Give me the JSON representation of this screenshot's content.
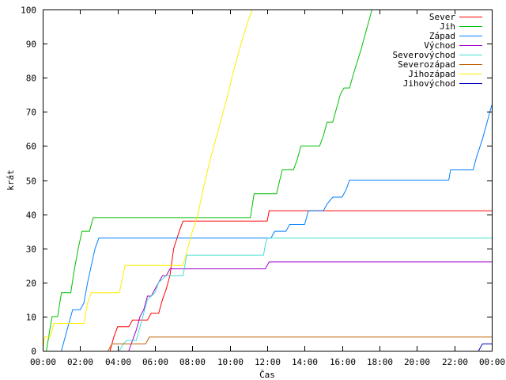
{
  "chart_data": {
    "type": "line",
    "title": "",
    "xlabel": "Čas",
    "ylabel": "krát",
    "xlim": [
      0,
      24
    ],
    "ylim": [
      0,
      100
    ],
    "grid": false,
    "legend_position": "top-right",
    "x_ticks": [
      {
        "v": 0,
        "label": "00:00"
      },
      {
        "v": 2,
        "label": "02:00"
      },
      {
        "v": 4,
        "label": "04:00"
      },
      {
        "v": 6,
        "label": "06:00"
      },
      {
        "v": 8,
        "label": "08:00"
      },
      {
        "v": 10,
        "label": "10:00"
      },
      {
        "v": 12,
        "label": "12:00"
      },
      {
        "v": 14,
        "label": "14:00"
      },
      {
        "v": 16,
        "label": "16:00"
      },
      {
        "v": 18,
        "label": "18:00"
      },
      {
        "v": 20,
        "label": "20:00"
      },
      {
        "v": 22,
        "label": "22:00"
      },
      {
        "v": 24,
        "label": "00:00"
      }
    ],
    "y_ticks": [
      {
        "v": 0,
        "label": "0"
      },
      {
        "v": 10,
        "label": "10"
      },
      {
        "v": 20,
        "label": "20"
      },
      {
        "v": 30,
        "label": "30"
      },
      {
        "v": 40,
        "label": "40"
      },
      {
        "v": 50,
        "label": "50"
      },
      {
        "v": 60,
        "label": "60"
      },
      {
        "v": 70,
        "label": "70"
      },
      {
        "v": 80,
        "label": "80"
      },
      {
        "v": 90,
        "label": "90"
      },
      {
        "v": 100,
        "label": "100"
      }
    ],
    "series": [
      {
        "name": "Sever",
        "color": "#ff0000",
        "points": [
          [
            3.6,
            0
          ],
          [
            3.8,
            4
          ],
          [
            4.0,
            7
          ],
          [
            4.6,
            7
          ],
          [
            4.8,
            9
          ],
          [
            5.6,
            9
          ],
          [
            5.8,
            11
          ],
          [
            6.2,
            11
          ],
          [
            6.4,
            15
          ],
          [
            6.6,
            18
          ],
          [
            6.8,
            22
          ],
          [
            7.0,
            30
          ],
          [
            7.3,
            35
          ],
          [
            7.5,
            38
          ],
          [
            12.0,
            38
          ],
          [
            12.1,
            41
          ],
          [
            24.0,
            41
          ]
        ]
      },
      {
        "name": "Jih",
        "color": "#00c000",
        "points": [
          [
            0.2,
            0
          ],
          [
            0.5,
            10
          ],
          [
            0.8,
            10
          ],
          [
            1.0,
            17
          ],
          [
            1.5,
            17
          ],
          [
            1.7,
            24
          ],
          [
            1.9,
            30
          ],
          [
            2.1,
            35
          ],
          [
            2.5,
            35
          ],
          [
            2.7,
            39
          ],
          [
            11.1,
            39
          ],
          [
            11.3,
            46
          ],
          [
            12.5,
            46
          ],
          [
            12.8,
            53
          ],
          [
            13.4,
            53
          ],
          [
            13.6,
            56
          ],
          [
            13.8,
            60
          ],
          [
            14.8,
            60
          ],
          [
            15.0,
            63
          ],
          [
            15.2,
            67
          ],
          [
            15.5,
            67
          ],
          [
            15.7,
            71
          ],
          [
            15.9,
            75
          ],
          [
            16.1,
            77
          ],
          [
            16.4,
            77
          ],
          [
            16.6,
            81
          ],
          [
            17.0,
            88
          ],
          [
            17.4,
            96
          ],
          [
            17.6,
            100
          ]
        ]
      },
      {
        "name": "Západ",
        "color": "#0080ff",
        "points": [
          [
            1.0,
            0
          ],
          [
            1.2,
            4
          ],
          [
            1.4,
            8
          ],
          [
            1.6,
            12
          ],
          [
            2.0,
            12
          ],
          [
            2.2,
            14
          ],
          [
            2.4,
            20
          ],
          [
            2.6,
            25
          ],
          [
            2.8,
            30
          ],
          [
            3.0,
            33
          ],
          [
            12.2,
            33
          ],
          [
            12.4,
            35
          ],
          [
            13.0,
            35
          ],
          [
            13.2,
            37
          ],
          [
            14.0,
            37
          ],
          [
            14.2,
            41
          ],
          [
            14.5,
            41
          ],
          [
            15.0,
            41
          ],
          [
            15.2,
            43
          ],
          [
            15.5,
            45
          ],
          [
            16.0,
            45
          ],
          [
            16.2,
            47
          ],
          [
            16.4,
            50
          ],
          [
            21.7,
            50
          ],
          [
            21.8,
            53
          ],
          [
            23.0,
            53
          ],
          [
            23.2,
            57
          ],
          [
            23.5,
            62
          ],
          [
            23.8,
            68
          ],
          [
            24.0,
            72
          ]
        ]
      },
      {
        "name": "Východ",
        "color": "#a000d0",
        "points": [
          [
            4.6,
            0
          ],
          [
            4.8,
            3
          ],
          [
            5.0,
            6
          ],
          [
            5.2,
            10
          ],
          [
            5.4,
            12
          ],
          [
            5.6,
            16
          ],
          [
            5.8,
            16
          ],
          [
            6.0,
            18
          ],
          [
            6.2,
            20
          ],
          [
            6.4,
            22
          ],
          [
            6.6,
            22
          ],
          [
            6.8,
            24
          ],
          [
            11.9,
            24
          ],
          [
            12.1,
            26
          ],
          [
            24.0,
            26
          ]
        ]
      },
      {
        "name": "Severovýchod",
        "color": "#40e0d0",
        "points": [
          [
            4.1,
            0
          ],
          [
            4.3,
            2
          ],
          [
            4.5,
            3
          ],
          [
            5.0,
            3
          ],
          [
            5.2,
            7
          ],
          [
            5.4,
            11
          ],
          [
            5.6,
            15
          ],
          [
            6.0,
            17
          ],
          [
            6.2,
            20
          ],
          [
            6.6,
            22
          ],
          [
            7.5,
            22
          ],
          [
            7.7,
            28
          ],
          [
            11.8,
            28
          ],
          [
            11.9,
            31
          ],
          [
            12.0,
            33
          ],
          [
            24.0,
            33
          ]
        ]
      },
      {
        "name": "Severozápad",
        "color": "#c06000",
        "points": [
          [
            3.5,
            0
          ],
          [
            3.7,
            2
          ],
          [
            5.5,
            2
          ],
          [
            5.7,
            4
          ],
          [
            24.0,
            4
          ]
        ]
      },
      {
        "name": "Jihozápad",
        "color": "#ffee00",
        "points": [
          [
            0.0,
            0
          ],
          [
            0.1,
            4
          ],
          [
            0.4,
            4
          ],
          [
            0.6,
            8
          ],
          [
            2.2,
            8
          ],
          [
            2.4,
            14
          ],
          [
            2.6,
            17
          ],
          [
            4.1,
            17
          ],
          [
            4.4,
            25
          ],
          [
            7.5,
            25
          ],
          [
            7.7,
            29
          ],
          [
            8.0,
            35
          ],
          [
            8.3,
            40
          ],
          [
            8.6,
            48
          ],
          [
            9.0,
            57
          ],
          [
            9.4,
            65
          ],
          [
            9.8,
            73
          ],
          [
            10.2,
            82
          ],
          [
            10.6,
            90
          ],
          [
            11.0,
            97
          ],
          [
            11.2,
            100
          ]
        ]
      },
      {
        "name": "Jihovýchod",
        "color": "#0000c0",
        "points": [
          [
            23.3,
            0
          ],
          [
            23.5,
            2
          ],
          [
            24.0,
            2
          ]
        ]
      }
    ]
  }
}
